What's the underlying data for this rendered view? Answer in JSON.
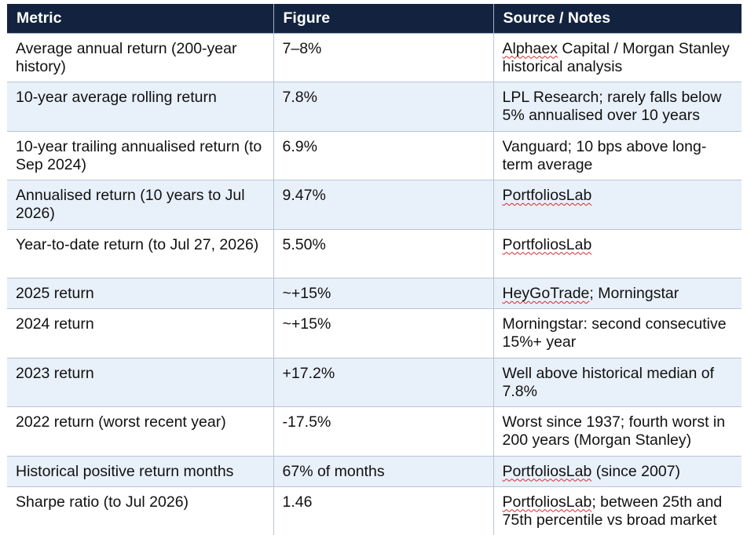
{
  "table": {
    "headers": [
      "Metric",
      "Figure",
      "Source / Notes"
    ],
    "rows": [
      {
        "metric": "Average annual return (200-year history)",
        "figure": "7–8%",
        "source_flagged": "Alphaex",
        "source": " Capital / Morgan Stanley historical analysis"
      },
      {
        "metric": "10-year average rolling return",
        "figure": "7.8%",
        "source_flagged": "",
        "source": "LPL Research; rarely falls below 5% annualised over 10 years"
      },
      {
        "metric": "10-year trailing annualised return (to Sep 2024)",
        "figure": "6.9%",
        "source_flagged": "",
        "source": "Vanguard; 10 bps above long-term average"
      },
      {
        "metric": "Annualised return (10 years to Jul 2026)",
        "figure": "9.47%",
        "source_flagged": "PortfoliosLab",
        "source": ""
      },
      {
        "metric": "Year-to-date return (to Jul 27, 2026)",
        "figure": "5.50%",
        "source_flagged": "PortfoliosLab",
        "source": ""
      },
      {
        "metric": "2025 return",
        "figure": "~+15%",
        "source_flagged": "HeyGoTrade",
        "source": "; Morningstar"
      },
      {
        "metric": "2024 return",
        "figure": "~+15%",
        "source_flagged": "",
        "source": "Morningstar: second consecutive 15%+ year"
      },
      {
        "metric": "2023 return",
        "figure": "+17.2%",
        "source_flagged": "",
        "source": "Well above historical median of 7.8%"
      },
      {
        "metric": "2022 return (worst recent year)",
        "figure": "-17.5%",
        "source_flagged": "",
        "source": "Worst since 1937; fourth worst in 200 years (Morgan Stanley)"
      },
      {
        "metric": "Historical positive return months",
        "figure": "67% of months",
        "source_flagged": "PortfoliosLab",
        "source": " (since 2007)"
      },
      {
        "metric": "Sharpe ratio (to Jul 2026)",
        "figure": "1.46",
        "source_flagged": "PortfoliosLab",
        "source": "; between 25th and 75th percentile vs broad market"
      }
    ]
  },
  "colors": {
    "header_bg": "#13233f",
    "header_text": "#ffffff",
    "alt_row_bg": "#e8f0fa",
    "plain_row_bg": "#ffffff",
    "spellcheck_underline": "#d42a2a"
  }
}
